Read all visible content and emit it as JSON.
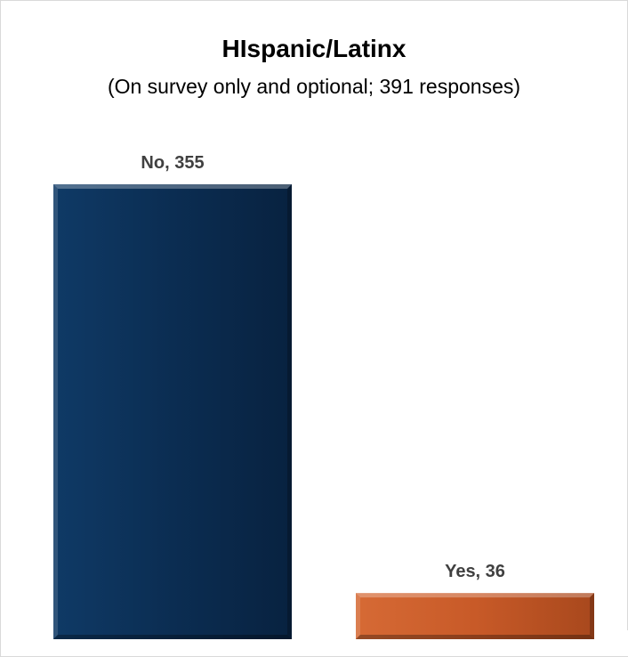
{
  "chart_data": {
    "type": "bar",
    "title": "HIspanic/Latinx",
    "subtitle": "(On survey only and optional; 391 responses)",
    "categories": [
      "No",
      "Yes"
    ],
    "values": [
      355,
      36
    ],
    "data_labels": [
      "No, 355",
      "Yes, 36"
    ],
    "colors": [
      "#0b2d52",
      "#c85a28"
    ],
    "xlabel": "",
    "ylabel": "",
    "ylim": [
      0,
      355
    ],
    "grid": false,
    "legend": "none"
  }
}
